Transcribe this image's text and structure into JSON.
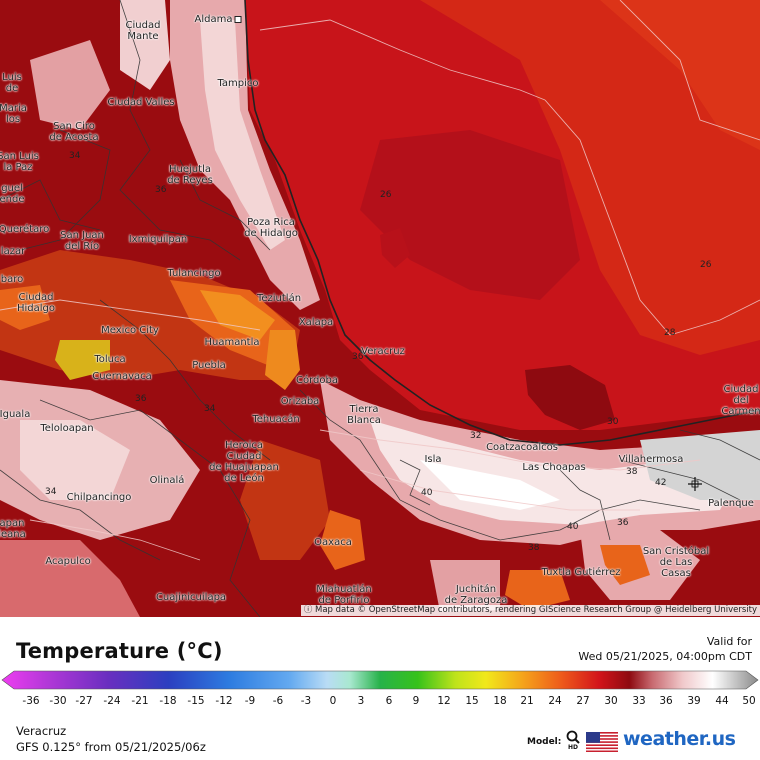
{
  "legend": {
    "title": "Temperature (°C)",
    "ticks": [
      "-36",
      "-30",
      "-27",
      "-24",
      "-21",
      "-18",
      "-15",
      "-12",
      "-9",
      "-6",
      "-3",
      "0",
      "3",
      "6",
      "9",
      "12",
      "15",
      "18",
      "21",
      "24",
      "27",
      "30",
      "33",
      "36",
      "39",
      "44",
      "50"
    ]
  },
  "valid": {
    "label": "Valid for",
    "time": "Wed 05/21/2025, 04:00pm CDT"
  },
  "location": "Veracruz",
  "model_run": "GFS 0.125° from  05/21/2025/06z",
  "model_label": "Model:",
  "brand": "weather.us",
  "attribution": "Map data © OpenStreetMap contributors, rendering GIScience Research Group @ Heidelberg University",
  "colors": {
    "sea": "#c8141a",
    "sea_light": "#d82d1a",
    "land_hot": "#9a0c10",
    "very_hot": "#f3d6d6",
    "brand": "#1f66c2"
  },
  "cities": [
    {
      "name": "Aldama"
    },
    {
      "name": "Ciudad\nMante"
    },
    {
      "name": "Tampico"
    },
    {
      "name": "Ciudad Valles"
    },
    {
      "name": "San Ciro\nde Acosta"
    },
    {
      "name": "Huejutla\nde Reyes"
    },
    {
      "name": "Poza Rica\nde Hidalgo"
    },
    {
      "name": "San Juan\ndel Río"
    },
    {
      "name": "Ixmiquilpan"
    },
    {
      "name": "Querétaro"
    },
    {
      "name": "Tulancingo"
    },
    {
      "name": "Ciudad\nHidalgo"
    },
    {
      "name": "Teziutlán"
    },
    {
      "name": "Xalapa"
    },
    {
      "name": "Mexico City"
    },
    {
      "name": "Huamantla"
    },
    {
      "name": "Toluca"
    },
    {
      "name": "Cuernavaca"
    },
    {
      "name": "Puebla"
    },
    {
      "name": "Veracruz"
    },
    {
      "name": "Córdoba"
    },
    {
      "name": "Orizaba"
    },
    {
      "name": "Tierra\nBlanca"
    },
    {
      "name": "Tehuacán"
    },
    {
      "name": "Teloloapan"
    },
    {
      "name": "Heroica\nCiudad\nde Huajuapan\nde León"
    },
    {
      "name": "Coatzacoalcos"
    },
    {
      "name": "Las Choapas"
    },
    {
      "name": "Villahermosa"
    },
    {
      "name": "Ciudad\ndel\nCarmen"
    },
    {
      "name": "Isla"
    },
    {
      "name": "Olinalá"
    },
    {
      "name": "Chilpancingo"
    },
    {
      "name": "Palenque"
    },
    {
      "name": "Oaxaca"
    },
    {
      "name": "Acapulco"
    },
    {
      "name": "San Cristóbal\nde Las\nCasas"
    },
    {
      "name": "Tuxtla Gutiérrez"
    },
    {
      "name": "Juchitán\nde Zaragoza"
    },
    {
      "name": "Miahuatlán\nde Porfirio"
    },
    {
      "name": "Cuajinicuilapa"
    },
    {
      "name": "Luis\nde"
    },
    {
      "name": "Maria\nlos"
    },
    {
      "name": "San Luis\nla Paz"
    },
    {
      "name": "guel\nende"
    },
    {
      "name": "lazar"
    },
    {
      "name": "baro"
    },
    {
      "name": "Iguala"
    },
    {
      "name": "apan\nleana"
    }
  ],
  "contour_labels": [
    "26",
    "26",
    "28",
    "30",
    "32",
    "34",
    "34",
    "36",
    "36",
    "36",
    "36",
    "38",
    "38",
    "40",
    "40",
    "42",
    "34"
  ]
}
